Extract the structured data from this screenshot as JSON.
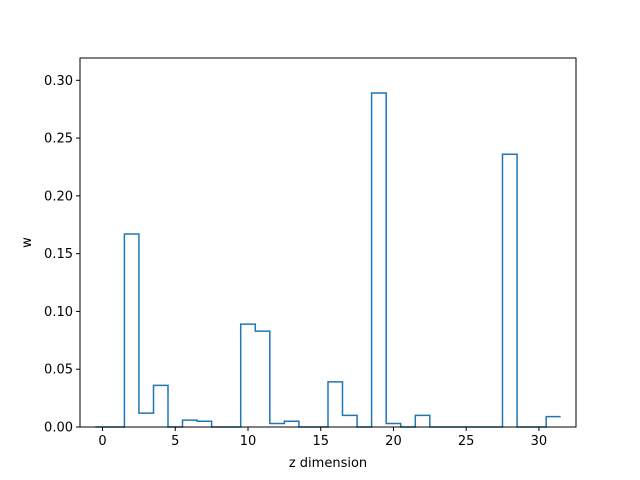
{
  "chart_data": {
    "type": "step",
    "title": "",
    "xlabel": "z dimension",
    "ylabel": "w",
    "xlim": [
      -1.55,
      32.55
    ],
    "ylim": [
      0,
      0.3193
    ],
    "xticks": [
      0,
      5,
      10,
      15,
      20,
      25,
      30
    ],
    "xtick_labels": [
      "0",
      "5",
      "10",
      "15",
      "20",
      "25",
      "30"
    ],
    "yticks": [
      0.0,
      0.05,
      0.1,
      0.15,
      0.2,
      0.25,
      0.3
    ],
    "ytick_labels": [
      "0.00",
      "0.05",
      "0.10",
      "0.15",
      "0.20",
      "0.25",
      "0.30"
    ],
    "grid": false,
    "line_color": "#1f77b4",
    "series": [
      {
        "x": [
          0,
          1,
          2,
          3,
          4,
          5,
          6,
          7,
          8,
          9,
          10,
          11,
          12,
          13,
          14,
          15,
          16,
          17,
          18,
          19,
          20,
          21,
          22,
          23,
          24,
          25,
          26,
          27,
          28,
          29,
          30,
          31
        ],
        "values": [
          0.0,
          0.0,
          0.167,
          0.012,
          0.036,
          0.0,
          0.006,
          0.005,
          0.0,
          0.0,
          0.089,
          0.083,
          0.003,
          0.005,
          0.0,
          0.0,
          0.039,
          0.01,
          0.0,
          0.289,
          0.003,
          0.0,
          0.01,
          0.0,
          0.0,
          0.0,
          0.0,
          0.0,
          0.236,
          0.0,
          0.0,
          0.009
        ]
      }
    ]
  }
}
